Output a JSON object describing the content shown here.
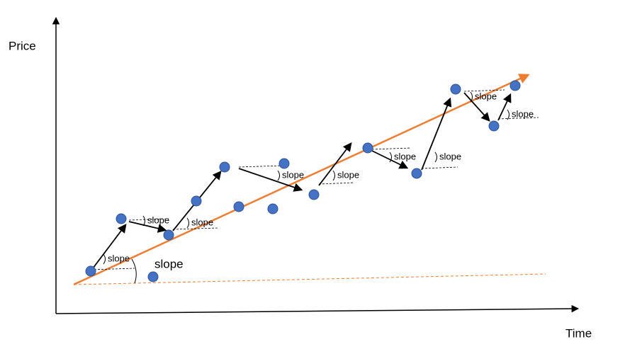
{
  "axes": {
    "y_label": "Price",
    "x_label": "Time"
  },
  "trend_label": "slope",
  "slope_labels": [
    "slope",
    "slope",
    "slope",
    "slope",
    "slope",
    "slope",
    "slope",
    "slope",
    "slope"
  ]
}
